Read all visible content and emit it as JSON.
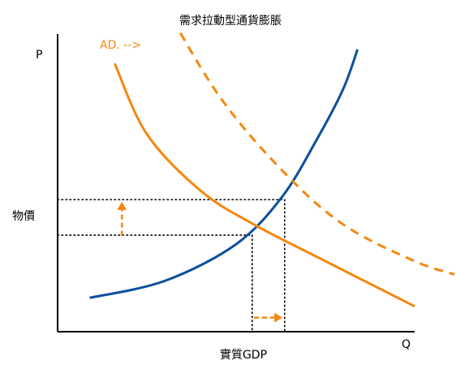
{
  "chart_data": {
    "type": "line",
    "title": "需求拉動型通貨膨脹",
    "y_axis_letter": "P",
    "x_axis_letter": "Q",
    "ylabel": "物價",
    "xlabel": "實質GDP",
    "shift_label": "AD. -->",
    "xlim": [
      0,
      100
    ],
    "ylim": [
      0,
      100
    ],
    "colors": {
      "demand": "#F5860F",
      "supply": "#0B4F9C",
      "axis": "#000000",
      "guide": "#000000"
    },
    "series": [
      {
        "key": "supply",
        "style": "solid",
        "points": [
          [
            9,
            12
          ],
          [
            30,
            18
          ],
          [
            50,
            31
          ],
          [
            63,
            48
          ],
          [
            73,
            69
          ],
          [
            80,
            86
          ],
          [
            84,
            100
          ]
        ]
      },
      {
        "key": "demand",
        "style": "solid",
        "points": [
          [
            16,
            95
          ],
          [
            25,
            70
          ],
          [
            40,
            50
          ],
          [
            55,
            38
          ],
          [
            75,
            25
          ],
          [
            100,
            9
          ]
        ]
      },
      {
        "key": "demand-shifted",
        "style": "dashed",
        "points": [
          [
            28,
            120
          ],
          [
            45,
            84
          ],
          [
            63,
            57
          ],
          [
            80,
            38
          ],
          [
            100,
            25
          ],
          [
            112,
            20
          ]
        ]
      }
    ],
    "equilibria": {
      "original": [
        54.5,
        34.2
      ],
      "new": [
        63.6,
        46.8
      ]
    },
    "arrows": {
      "price_up": {
        "x": 18,
        "from": 34,
        "to": 46
      },
      "gdp_right": {
        "y": 5,
        "from": 55,
        "to": 63
      }
    }
  }
}
